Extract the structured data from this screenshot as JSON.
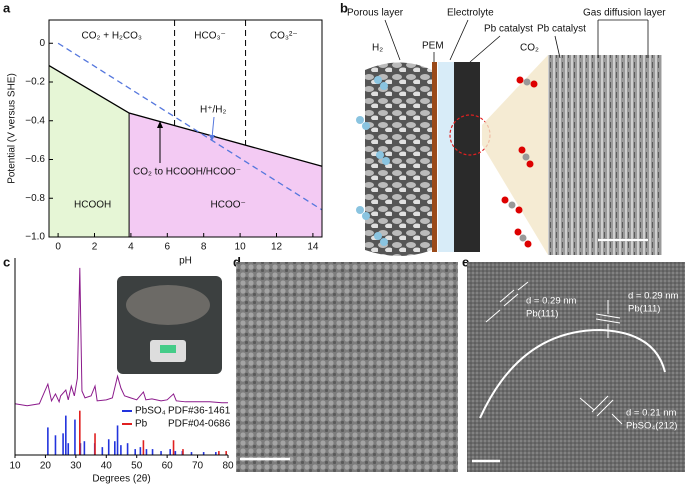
{
  "panel_labels": [
    "a",
    "b",
    "c",
    "d",
    "e"
  ],
  "chart_data": [
    {
      "type": "line",
      "x_label": "pH",
      "y_label": "Potential (V versus SHE)",
      "xlim": [
        -0.5,
        14.5
      ],
      "ylim": [
        -1.0,
        0.12
      ],
      "xticks": [
        0,
        2,
        4,
        6,
        8,
        10,
        12,
        14
      ],
      "yticks": [
        0,
        {
          "value": -0.2,
          "label": "−0.2"
        },
        {
          "value": -0.4,
          "label": "−0.4"
        },
        {
          "value": -0.6,
          "label": "−0.6"
        },
        {
          "value": -0.8,
          "label": "−0.8"
        },
        {
          "value": -1.0,
          "label": "−1.0"
        }
      ],
      "series": [
        {
          "color": "#000000",
          "x": [
            -0.5,
            3.9,
            14.5
          ],
          "values": [
            -0.115,
            -0.36,
            -0.635
          ]
        },
        {
          "color": "#5577dd",
          "dashed": true,
          "x": [
            0,
            14.5
          ],
          "values": [
            0,
            -0.86
          ]
        }
      ],
      "regions": [
        {
          "label": "HCOOH",
          "color": "#e6f6d6",
          "x": [
            -0.5,
            3.9
          ]
        },
        {
          "label": "HCOO⁻",
          "color": "#f3caf3",
          "x": [
            3.9,
            14.5
          ]
        }
      ],
      "boundaries": [
        6.4,
        10.3
      ],
      "zone_labels": [
        "CO₂ + H₂CO₃",
        "HCO₃⁻",
        "CO₃²⁻"
      ],
      "annotations": [
        "H⁺/H₂",
        "CO₂ to HCOOH/HCOO⁻"
      ]
    },
    {
      "type": "combo",
      "x_label": "Degrees (2θ)",
      "xlim": [
        10,
        80
      ],
      "ylim": [
        0,
        200
      ],
      "xticks": [
        10,
        20,
        30,
        40,
        50,
        60,
        70,
        80
      ],
      "series": [
        {
          "kind": "line",
          "color": "#8b1a8b",
          "x": [
            10,
            14,
            18,
            20.8,
            22,
            23.3,
            24.5,
            25,
            26.7,
            27.5,
            28.5,
            29.5,
            30.5,
            31.3,
            32,
            33,
            35,
            36.3,
            37,
            40,
            42,
            43.7,
            44.8,
            46,
            48,
            50,
            52.2,
            53,
            55,
            58,
            60,
            62.1,
            63,
            66,
            70,
            74,
            78,
            80
          ],
          "values": [
            52,
            50,
            52,
            72,
            55,
            62,
            54,
            60,
            66,
            56,
            70,
            60,
            78,
            190,
            65,
            58,
            60,
            70,
            55,
            56,
            58,
            80,
            68,
            60,
            58,
            56,
            64,
            56,
            57,
            55,
            56,
            62,
            55,
            54,
            54,
            54,
            53,
            53
          ]
        },
        {
          "kind": "bar",
          "name": "PbSO₄",
          "card": "PDF#36-1461",
          "color": "#2233dd",
          "x": [
            20.8,
            23.3,
            25.8,
            26.7,
            27.5,
            29.7,
            31.5,
            32.8,
            36.2,
            38.7,
            40.8,
            42.8,
            43.7,
            44.8,
            47,
            49.5,
            51.2,
            53.2,
            55.2,
            58,
            61,
            62.7,
            65,
            68,
            72,
            76
          ],
          "values": [
            28,
            20,
            22,
            40,
            12,
            36,
            12,
            14,
            12,
            8,
            16,
            14,
            30,
            10,
            12,
            6,
            8,
            6,
            6,
            4,
            6,
            4,
            4,
            3,
            3,
            3
          ]
        },
        {
          "kind": "bar",
          "name": "Pb",
          "card": "PDF#04-0686",
          "color": "#e02020",
          "x": [
            31.3,
            36.3,
            52.2,
            62.1,
            65.2,
            77,
            79.4
          ],
          "values": [
            45,
            22,
            15,
            15,
            6,
            4,
            4
          ]
        }
      ]
    }
  ],
  "scheme_b": {
    "labels": [
      "Porous layer",
      "PEM",
      "Electrolyte",
      "Pb catalyst",
      "Pb catalyst",
      "Gas diffusion layer",
      "H₂",
      "CO₂"
    ]
  },
  "micrograph_e": {
    "annotations": [
      "d = 0.29 nm",
      "Pb(111)",
      "d = 0.29 nm",
      "Pb(111)",
      "d = 0.21 nm",
      "PbSO₄(212)"
    ]
  }
}
